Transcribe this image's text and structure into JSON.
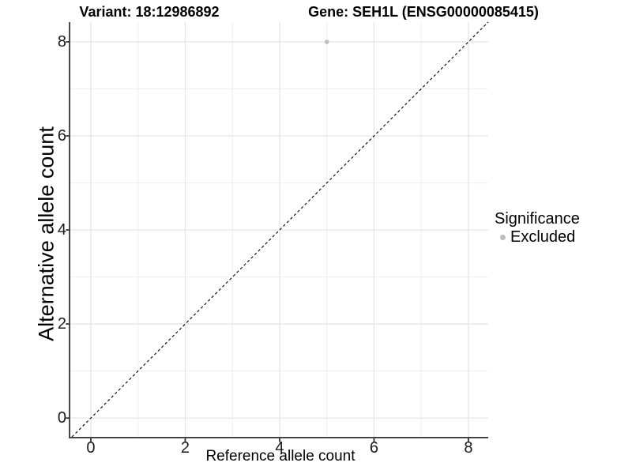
{
  "figure": {
    "title_left": "Variant: 18:12986892",
    "title_right": "Gene: SEH1L (ENSG00000085415)"
  },
  "chart_data": {
    "type": "scatter",
    "title_left": "Variant: 18:12986892",
    "title_right": "Gene: SEH1L (ENSG00000085415)",
    "xlabel": "Reference allele count",
    "ylabel": "Alternative allele count",
    "xlim": [
      -0.435,
      8.42
    ],
    "ylim": [
      -0.4,
      8.42
    ],
    "xticks": [
      0,
      2,
      4,
      6,
      8
    ],
    "yticks": [
      0,
      2,
      4,
      6,
      8
    ],
    "minor_gridlines_x": [
      1,
      3,
      5,
      7
    ],
    "minor_gridlines_y": [
      1,
      3,
      5,
      7
    ],
    "grid": true,
    "legend_position": "right",
    "points": [
      {
        "x": 5,
        "y": 8,
        "series": "Excluded"
      }
    ],
    "reference_line": {
      "type": "identity",
      "slope": 1,
      "intercept": 0,
      "style": "dashed",
      "color": "#000000",
      "equation": "y = x"
    },
    "legend": {
      "title": "Significance",
      "entries": [
        {
          "label": "Excluded",
          "color": "#bdbdbd",
          "marker": "circle"
        }
      ]
    },
    "colors": {
      "point": "#bdbdbd",
      "grid_major": "#e3e3e3",
      "grid_minor": "#eeeeee",
      "axis_line": "#333333",
      "dashed_line": "#000000",
      "text": "#000000"
    }
  }
}
